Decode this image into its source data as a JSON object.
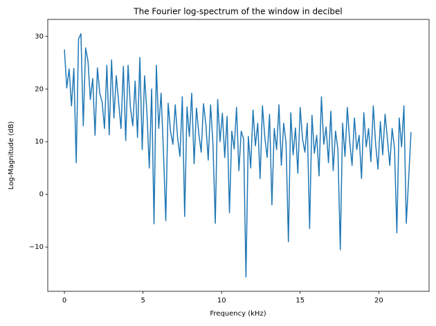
{
  "chart_data": {
    "type": "line",
    "title": "The Fourier log-spectrum of the window in decibel",
    "xlabel": "Frequency (kHz)",
    "ylabel": "Log-Magnitude (dB)",
    "color": "#1f77b4",
    "xlim": [
      -1.06,
      23.2
    ],
    "ylim": [
      -18.4,
      33.2
    ],
    "xticks": [
      0,
      5,
      10,
      15,
      20
    ],
    "yticks": [
      {
        "value": -10,
        "label": "−10"
      },
      0,
      10,
      20,
      30
    ],
    "x": [
      0,
      0.15,
      0.3,
      0.45,
      0.6,
      0.75,
      0.9,
      1.05,
      1.2,
      1.35,
      1.5,
      1.65,
      1.8,
      1.95,
      2.1,
      2.25,
      2.4,
      2.55,
      2.7,
      2.85,
      3,
      3.15,
      3.3,
      3.45,
      3.6,
      3.75,
      3.9,
      4.05,
      4.2,
      4.35,
      4.5,
      4.65,
      4.8,
      4.95,
      5.1,
      5.25,
      5.4,
      5.55,
      5.7,
      5.85,
      6,
      6.15,
      6.3,
      6.45,
      6.6,
      6.75,
      6.9,
      7.05,
      7.2,
      7.35,
      7.5,
      7.65,
      7.8,
      7.95,
      8.1,
      8.25,
      8.4,
      8.55,
      8.7,
      8.85,
      9,
      9.15,
      9.3,
      9.45,
      9.6,
      9.75,
      9.9,
      10.05,
      10.2,
      10.35,
      10.5,
      10.65,
      10.8,
      10.95,
      11.1,
      11.25,
      11.4,
      11.55,
      11.7,
      11.85,
      12,
      12.15,
      12.3,
      12.45,
      12.6,
      12.75,
      12.9,
      13.05,
      13.2,
      13.35,
      13.5,
      13.65,
      13.8,
      13.95,
      14.1,
      14.25,
      14.4,
      14.55,
      14.7,
      14.85,
      15,
      15.15,
      15.3,
      15.45,
      15.6,
      15.75,
      15.9,
      16.05,
      16.2,
      16.35,
      16.5,
      16.65,
      16.8,
      16.95,
      17.1,
      17.25,
      17.4,
      17.55,
      17.7,
      17.85,
      18,
      18.15,
      18.3,
      18.45,
      18.6,
      18.75,
      18.9,
      19.05,
      19.2,
      19.35,
      19.5,
      19.65,
      19.8,
      19.95,
      20.1,
      20.25,
      20.4,
      20.55,
      20.7,
      20.85,
      21,
      21.15,
      21.3,
      21.45,
      21.6,
      21.75,
      21.9,
      22.05
    ],
    "values": [
      27.5,
      20.2,
      23.8,
      16.8,
      23.9,
      6,
      29.5,
      30.5,
      13,
      27.8,
      25.3,
      18,
      22,
      11.2,
      24,
      19.2,
      17.5,
      12.5,
      24.5,
      11.3,
      25.5,
      14.5,
      22.5,
      17.5,
      12.5,
      24.3,
      10.2,
      24.5,
      16.5,
      13,
      21.5,
      10.8,
      26,
      8.5,
      22.5,
      15.5,
      5,
      20,
      -5.6,
      24.5,
      12.5,
      19.2,
      8.2,
      -5,
      17.3,
      12,
      9.5,
      17,
      10.8,
      7.2,
      18.5,
      -4.2,
      16.6,
      11,
      19.2,
      5.8,
      16.4,
      11.5,
      8,
      17.2,
      13.2,
      6.5,
      17,
      9.5,
      -5.5,
      18,
      10,
      15.4,
      7,
      14.8,
      -3.5,
      12,
      8.6,
      16.5,
      4.5,
      12,
      10.5,
      -15.7,
      11,
      5,
      16,
      9.2,
      13.5,
      3,
      16.8,
      10.8,
      7,
      15.2,
      -2,
      12.5,
      8.5,
      17,
      5.5,
      13.5,
      9.8,
      -9,
      15.5,
      7.5,
      12.6,
      4,
      16.5,
      10.5,
      8,
      13.5,
      -6.5,
      15,
      7.8,
      11.2,
      3.5,
      18.5,
      9.5,
      12.8,
      6,
      15.8,
      4.5,
      12,
      8.5,
      -10.5,
      13.5,
      7.2,
      16.5,
      10,
      5.5,
      14.5,
      8.5,
      11.2,
      3,
      15.5,
      9,
      12.5,
      6.2,
      16.8,
      9.5,
      4.8,
      13.8,
      7.5,
      15.2,
      10.5,
      5.5,
      12.5,
      8.8,
      -7.3,
      14.5,
      9,
      16.8,
      -5.5,
      3,
      11.8
    ]
  }
}
